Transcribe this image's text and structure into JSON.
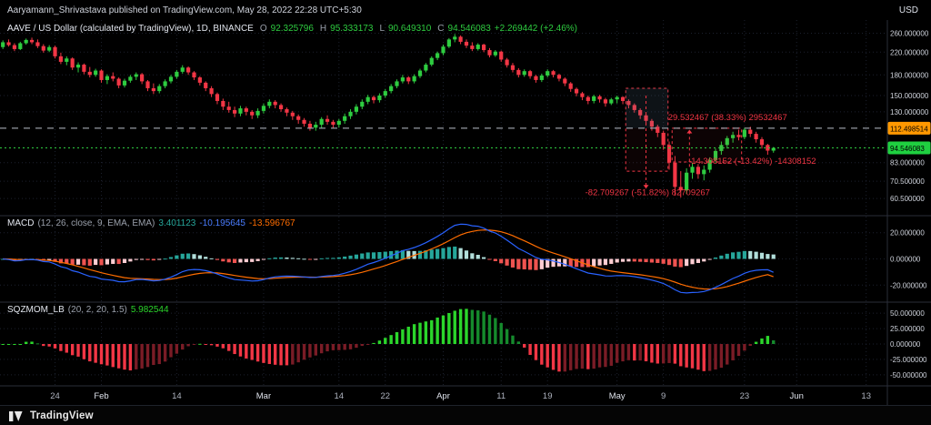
{
  "header": {
    "publish_text": "Aaryamann_Shrivastava published on TradingView.com, May 28, 2022 22:28 UTC+5:30",
    "currency": "USD"
  },
  "footer": {
    "brand": "TradingView"
  },
  "colors": {
    "up": "#2ecc40",
    "down": "#f23645",
    "macd_line": "#2962ff",
    "signal_line": "#ff6d00",
    "hist_pos": "#26a69a",
    "hist_pos_weak": "#b2dfdb",
    "hist_neg": "#ef5350",
    "hist_neg_weak": "#ffcdd2",
    "sqz_pos": "#2bd62b",
    "sqz_pos_weak": "#158a2c",
    "sqz_neg": "#f23645",
    "sqz_neg_weak": "#7a1c26",
    "annotation": "#f23645",
    "grid": "#1c212e",
    "separator": "#2a2e39",
    "axis_text": "#cfd3dc"
  },
  "main": {
    "legend": {
      "title": "AAVE / US Dollar (calculated by TradingView), 1D, BINANCE",
      "ohlc": [
        {
          "k": "O",
          "v": "92.325796"
        },
        {
          "k": "H",
          "v": "95.333173"
        },
        {
          "k": "L",
          "v": "90.649310"
        },
        {
          "k": "C",
          "v": "94.546083"
        }
      ],
      "change": "+2.269442 (+2.46%)"
    }
  },
  "macd": {
    "legend": {
      "name": "MACD",
      "params": "(12, 26, close, 9, EMA, EMA)",
      "hist": "3.401123",
      "macd": "-10.195645",
      "signal": "-13.596767"
    }
  },
  "sqzmom": {
    "legend": {
      "name": "SQZMOM_LB",
      "params": "(20, 2, 20, 1.5)",
      "value": "5.982544"
    }
  },
  "price_axis": {
    "ticks": [
      {
        "label": "260.000000",
        "value": 260
      },
      {
        "label": "220.000000",
        "value": 220
      },
      {
        "label": "180.000000",
        "value": 180
      },
      {
        "label": "150.000000",
        "value": 150
      },
      {
        "label": "130.000000",
        "value": 130
      },
      {
        "label": "83.000000",
        "value": 83
      },
      {
        "label": "70.500000",
        "value": 70.5
      },
      {
        "label": "60.500000",
        "value": 60.5
      }
    ],
    "badges": [
      {
        "label": "112.498514",
        "value": 112.498514,
        "bg": "#ff9800",
        "fg": "#000000"
      },
      {
        "label": "94.546083",
        "value": 94.546083,
        "bg": "#1fd040",
        "fg": "#000000"
      }
    ]
  },
  "macd_axis": [
    {
      "label": "20.000000",
      "value": 20
    },
    {
      "label": "0.000000",
      "value": 0
    },
    {
      "label": "-20.000000",
      "value": -20
    }
  ],
  "sqz_axis": [
    {
      "label": "50.000000",
      "value": 50
    },
    {
      "label": "25.000000",
      "value": 25
    },
    {
      "label": "0.000000",
      "value": 0
    },
    {
      "label": "-25.000000",
      "value": -25
    },
    {
      "label": "-50.000000",
      "value": -50
    }
  ],
  "time_axis": [
    {
      "label": "24",
      "i": 9,
      "major": false
    },
    {
      "label": "Feb",
      "i": 17,
      "major": true
    },
    {
      "label": "14",
      "i": 30,
      "major": false
    },
    {
      "label": "Mar",
      "i": 45,
      "major": true
    },
    {
      "label": "14",
      "i": 58,
      "major": false
    },
    {
      "label": "22",
      "i": 66,
      "major": false
    },
    {
      "label": "Apr",
      "i": 76,
      "major": true
    },
    {
      "label": "11",
      "i": 86,
      "major": false
    },
    {
      "label": "19",
      "i": 94,
      "major": false
    },
    {
      "label": "May",
      "i": 106,
      "major": true
    },
    {
      "label": "9",
      "i": 114,
      "major": false
    },
    {
      "label": "23",
      "i": 128,
      "major": false
    },
    {
      "label": "Jun",
      "i": 137,
      "major": true
    },
    {
      "label": "13",
      "i": 149,
      "major": false
    }
  ],
  "chart_data": [
    {
      "type": "candlestick",
      "symbol": "AAVE / US Dollar",
      "interval": "1D",
      "exchange": "BINANCE",
      "yscale": "log",
      "ylim": [
        52,
        292
      ],
      "ohlc": [
        [
          230,
          244,
          226,
          240
        ],
        [
          240,
          246,
          231,
          234
        ],
        [
          234,
          238,
          222,
          226
        ],
        [
          226,
          241,
          224,
          238
        ],
        [
          238,
          248,
          235,
          245
        ],
        [
          245,
          250,
          236,
          240
        ],
        [
          240,
          246,
          228,
          232
        ],
        [
          232,
          236,
          219,
          223
        ],
        [
          223,
          234,
          220,
          230
        ],
        [
          230,
          233,
          208,
          212
        ],
        [
          212,
          219,
          198,
          202
        ],
        [
          202,
          212,
          196,
          208
        ],
        [
          208,
          210,
          188,
          192
        ],
        [
          192,
          201,
          184,
          197
        ],
        [
          197,
          199,
          181,
          185
        ],
        [
          185,
          193,
          176,
          180
        ],
        [
          180,
          190,
          177,
          187
        ],
        [
          187,
          189,
          168,
          172
        ],
        [
          172,
          181,
          166,
          178
        ],
        [
          178,
          184,
          170,
          174
        ],
        [
          174,
          176,
          160,
          164
        ],
        [
          164,
          174,
          161,
          171
        ],
        [
          171,
          180,
          168,
          177
        ],
        [
          177,
          184,
          172,
          181
        ],
        [
          181,
          183,
          166,
          170
        ],
        [
          170,
          172,
          156,
          160
        ],
        [
          160,
          167,
          152,
          156
        ],
        [
          156,
          166,
          153,
          163
        ],
        [
          163,
          173,
          160,
          170
        ],
        [
          170,
          180,
          167,
          177
        ],
        [
          177,
          188,
          174,
          185
        ],
        [
          185,
          196,
          182,
          192
        ],
        [
          192,
          194,
          180,
          184
        ],
        [
          184,
          186,
          172,
          176
        ],
        [
          176,
          178,
          164,
          168
        ],
        [
          168,
          170,
          156,
          160
        ],
        [
          160,
          163,
          148,
          152
        ],
        [
          152,
          154,
          139,
          143
        ],
        [
          143,
          146,
          132,
          136
        ],
        [
          136,
          142,
          129,
          132
        ],
        [
          132,
          136,
          124,
          128
        ],
        [
          128,
          137,
          125,
          134
        ],
        [
          134,
          136,
          126,
          130
        ],
        [
          130,
          132,
          122,
          126
        ],
        [
          126,
          134,
          123,
          131
        ],
        [
          131,
          140,
          128,
          137
        ],
        [
          137,
          145,
          134,
          142
        ],
        [
          142,
          144,
          134,
          138
        ],
        [
          138,
          140,
          130,
          133
        ],
        [
          133,
          135,
          125,
          129
        ],
        [
          129,
          131,
          121,
          125
        ],
        [
          125,
          127,
          117,
          121
        ],
        [
          121,
          123,
          114,
          117
        ],
        [
          117,
          120,
          110,
          113
        ],
        [
          113,
          119,
          110,
          116
        ],
        [
          116,
          124,
          113,
          122
        ],
        [
          122,
          126,
          116,
          119
        ],
        [
          119,
          121,
          113,
          116
        ],
        [
          116,
          122,
          113,
          120
        ],
        [
          120,
          128,
          117,
          125
        ],
        [
          125,
          133,
          122,
          130
        ],
        [
          130,
          139,
          127,
          136
        ],
        [
          136,
          145,
          133,
          142
        ],
        [
          142,
          151,
          139,
          148
        ],
        [
          148,
          150,
          140,
          144
        ],
        [
          144,
          153,
          141,
          150
        ],
        [
          150,
          159,
          147,
          156
        ],
        [
          156,
          166,
          153,
          163
        ],
        [
          163,
          173,
          160,
          170
        ],
        [
          170,
          180,
          167,
          176
        ],
        [
          176,
          178,
          166,
          170
        ],
        [
          170,
          181,
          167,
          178
        ],
        [
          178,
          190,
          175,
          187
        ],
        [
          187,
          200,
          184,
          197
        ],
        [
          197,
          212,
          194,
          209
        ],
        [
          209,
          221,
          205,
          218
        ],
        [
          218,
          235,
          214,
          231
        ],
        [
          231,
          249,
          228,
          246
        ],
        [
          246,
          258,
          240,
          252
        ],
        [
          252,
          255,
          236,
          241
        ],
        [
          241,
          246,
          228,
          233
        ],
        [
          233,
          240,
          222,
          226
        ],
        [
          226,
          238,
          223,
          235
        ],
        [
          235,
          237,
          220,
          224
        ],
        [
          224,
          228,
          210,
          214
        ],
        [
          214,
          224,
          211,
          221
        ],
        [
          221,
          223,
          202,
          206
        ],
        [
          206,
          209,
          192,
          196
        ],
        [
          196,
          200,
          184,
          188
        ],
        [
          188,
          191,
          176,
          180
        ],
        [
          180,
          189,
          177,
          186
        ],
        [
          186,
          188,
          174,
          178
        ],
        [
          178,
          180,
          168,
          172
        ],
        [
          172,
          182,
          169,
          179
        ],
        [
          179,
          189,
          176,
          186
        ],
        [
          186,
          188,
          176,
          180
        ],
        [
          180,
          182,
          170,
          174
        ],
        [
          174,
          176,
          163,
          167
        ],
        [
          167,
          169,
          155,
          159
        ],
        [
          159,
          161,
          149,
          153
        ],
        [
          153,
          155,
          144,
          148
        ],
        [
          148,
          150,
          139,
          143
        ],
        [
          143,
          151,
          140,
          149
        ],
        [
          149,
          151,
          141,
          145
        ],
        [
          145,
          147,
          136,
          140
        ],
        [
          140,
          147,
          138,
          145
        ],
        [
          145,
          150,
          140,
          148
        ],
        [
          148,
          149,
          139,
          143
        ],
        [
          143,
          145,
          134,
          138
        ],
        [
          138,
          140,
          129,
          132
        ],
        [
          132,
          134,
          122,
          126
        ],
        [
          126,
          128,
          116,
          120
        ],
        [
          120,
          122,
          110,
          114
        ],
        [
          114,
          116,
          104,
          108
        ],
        [
          108,
          110,
          93,
          97
        ],
        [
          97,
          100,
          78,
          83
        ],
        [
          83,
          88,
          62,
          67
        ],
        [
          67,
          77,
          61,
          65
        ],
        [
          65,
          79,
          63,
          76
        ],
        [
          76,
          83,
          72,
          80
        ],
        [
          80,
          82,
          72,
          75
        ],
        [
          75,
          81,
          71,
          78
        ],
        [
          78,
          87,
          76,
          85
        ],
        [
          85,
          94,
          83,
          92
        ],
        [
          92,
          100,
          89,
          97
        ],
        [
          97,
          105,
          94,
          103
        ],
        [
          103,
          109,
          99,
          106
        ],
        [
          106,
          111,
          101,
          104
        ],
        [
          104,
          113,
          102,
          111
        ],
        [
          111,
          114,
          104,
          107
        ],
        [
          107,
          109,
          99,
          102
        ],
        [
          102,
          104,
          94,
          97
        ],
        [
          97,
          98,
          89,
          92.3
        ],
        [
          92.3,
          95.3,
          90.6,
          94.5
        ]
      ],
      "price_lines": [
        {
          "value": 112.498514,
          "color": "#b9bfca",
          "dash": "7 6"
        },
        {
          "value": 94.546083,
          "color": "#2ecc40",
          "dash": "2 3"
        }
      ],
      "measures": {
        "boxes": [
          {
            "d0": 107.5,
            "d1": 114.8,
            "p0": 160,
            "p1": 77,
            "fill": "rgba(242,54,69,0.05)",
            "stroke": "#f23645"
          },
          {
            "d0": 107.5,
            "d1": 114.8,
            "p0": 160,
            "p1": 112.5,
            "fill": "rgba(42,170,196,0.10)",
            "stroke": "none"
          },
          {
            "d0": 115.5,
            "d1": 127.5,
            "p0": 112.5,
            "p1": 83.5,
            "fill": "rgba(242,54,69,0.05)",
            "stroke": "#f23645"
          }
        ],
        "vlines": [
          {
            "d": 111,
            "p0": 150,
            "p1": 66,
            "dir": "down"
          },
          {
            "d": 118.5,
            "p0": 80,
            "p1": 111,
            "dir": "up"
          }
        ],
        "labels": [
          {
            "d": 114.8,
            "p": 121,
            "text": "29.532467 (38.33%) 29532467"
          },
          {
            "d": 118.3,
            "p": 82,
            "text": "-14.308152 (-13.42%) -14308152"
          },
          {
            "d": 100.5,
            "p": 62.3,
            "text": "-82.709267 (-51.82%) 82709267"
          }
        ]
      }
    },
    {
      "type": "macd",
      "source": "close",
      "fast": 12,
      "slow": 26,
      "smoothing": 9,
      "ylim": [
        -33,
        33
      ],
      "current": {
        "hist": 3.401123,
        "macd": -10.195645,
        "signal": -13.596767
      }
    },
    {
      "type": "squeeze_momentum",
      "length": 20,
      "mult": 2,
      "lengthKC": 20,
      "multKC": 1.5,
      "ylim": [
        -68,
        68
      ],
      "current": 5.982544
    }
  ]
}
